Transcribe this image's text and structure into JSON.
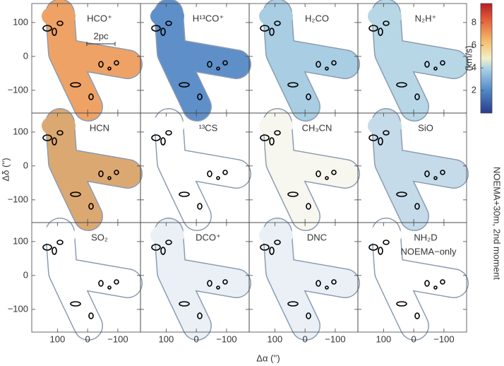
{
  "chart_data": {
    "type": "map",
    "panels": [
      {
        "label": "HCO⁺",
        "color": "#eea266"
      },
      {
        "label": "H¹³CO⁺",
        "color": "#5f8fc8"
      },
      {
        "label": "H₂CO",
        "color": "#a9cde2"
      },
      {
        "label": "N₂H⁺",
        "color": "#b7d7e6"
      },
      {
        "label": "HCN",
        "color": "#dca872"
      },
      {
        "label": "¹³CS",
        "color": "#ffffff"
      },
      {
        "label": "CH₃CN",
        "color": "#f7f6ef"
      },
      {
        "label": "SiO",
        "color": "#c6dbe9"
      },
      {
        "label": "SO₂",
        "color": "#ffffff"
      },
      {
        "label": "DCO⁺",
        "color": "#eaf0f6"
      },
      {
        "label": "DNC",
        "color": "#eaf0f6"
      },
      {
        "label": "NH₂D",
        "sublabel": "NOEMA−only",
        "color": "#ffffff"
      }
    ],
    "xlim": [
      185,
      -175
    ],
    "ylim": [
      -167,
      156
    ],
    "xticks": [
      100,
      0,
      {
        "value": -100,
        "label": "−100"
      }
    ],
    "yticks": [
      100,
      0,
      {
        "value": -100,
        "label": "−100"
      }
    ],
    "xlabel": "Δα ('')",
    "ylabel": "Δδ ('')",
    "scale_bar": "2pc",
    "side_label": "NOEMA+30m, 2nd moment",
    "colorbar": {
      "label": "(km/s)",
      "lim": [
        0,
        9.7
      ],
      "ticks": [
        2,
        4,
        6,
        8
      ]
    }
  }
}
